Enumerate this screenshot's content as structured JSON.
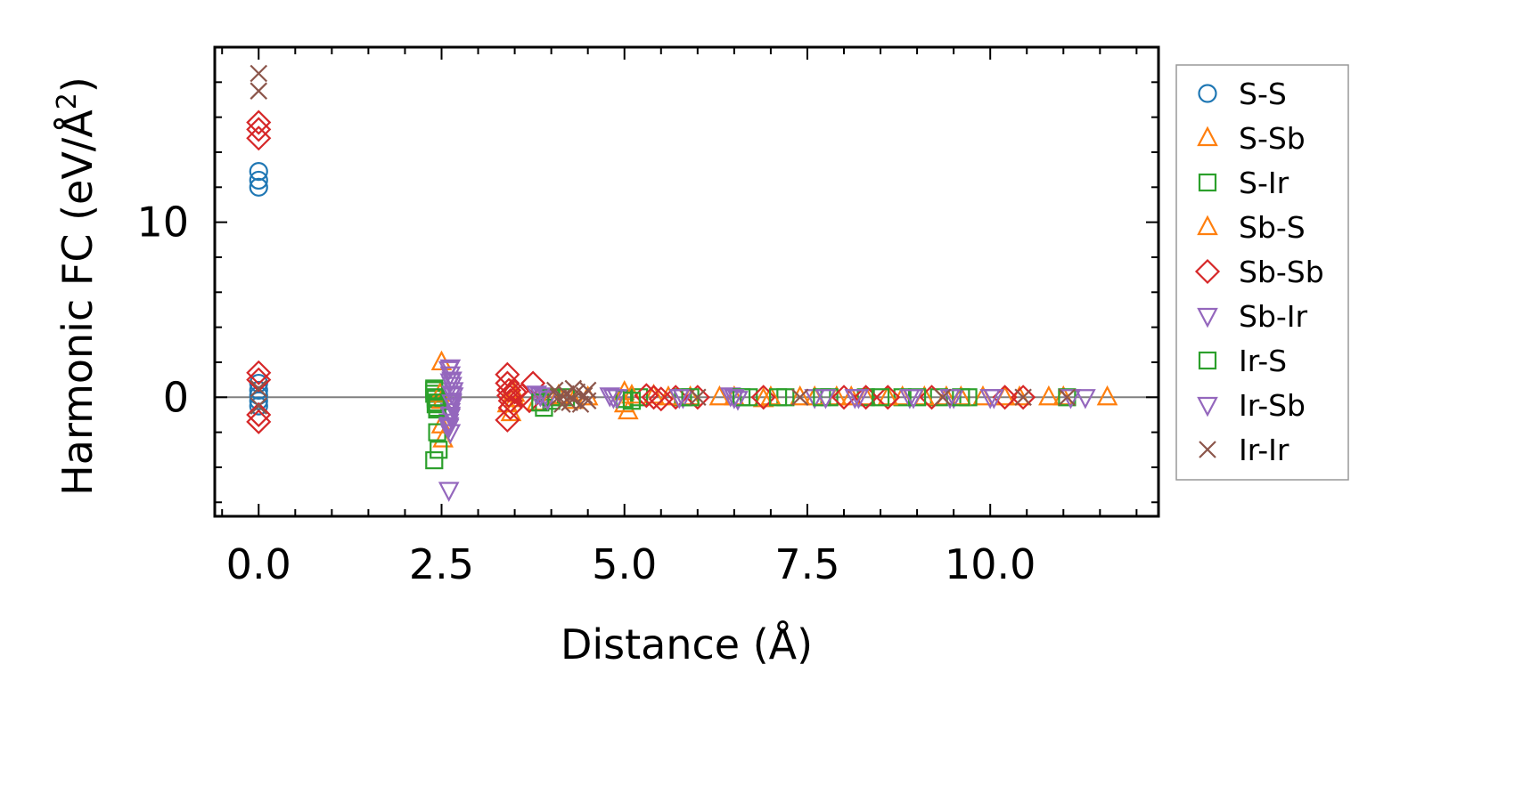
{
  "chart_data": {
    "type": "scatter",
    "title": "",
    "xlabel": "Distance (Å)",
    "ylabel_main": "Harmonic FC (eV/Å",
    "ylabel_sup": "2",
    "ylabel_close": ")",
    "xlim": [
      -0.6,
      12.3
    ],
    "ylim": [
      -6.8,
      20.0
    ],
    "xticks": [
      {
        "value": 0.0,
        "label": "0.0"
      },
      {
        "value": 2.5,
        "label": "2.5"
      },
      {
        "value": 5.0,
        "label": "5.0"
      },
      {
        "value": 7.5,
        "label": "7.5"
      },
      {
        "value": 10.0,
        "label": "10.0"
      }
    ],
    "yticks": [
      {
        "value": 0,
        "label": "0"
      },
      {
        "value": 10,
        "label": "10"
      }
    ],
    "x_minor_step": 0.5,
    "y_minor_step": 2,
    "zero_line": 0,
    "legend_position": "outside-right",
    "series": [
      {
        "name": "S-S",
        "marker": "circle",
        "color": "#1f77b4",
        "points": [
          [
            0,
            12.9
          ],
          [
            0,
            12.4
          ],
          [
            0,
            12.0
          ],
          [
            0,
            0.8
          ],
          [
            0,
            0.4
          ],
          [
            0,
            0.1
          ],
          [
            0,
            -0.2
          ],
          [
            0,
            -0.5
          ]
        ]
      },
      {
        "name": "S-Sb",
        "marker": "triangle-up",
        "color": "#ff7f0e",
        "points": [
          [
            2.5,
            2.0
          ],
          [
            2.5,
            -1.6
          ],
          [
            2.52,
            -2.4
          ],
          [
            3.4,
            -0.4
          ],
          [
            3.45,
            -0.9
          ],
          [
            3.5,
            0.2
          ],
          [
            3.8,
            -0.3
          ],
          [
            4.1,
            0.1
          ],
          [
            4.3,
            -0.2
          ],
          [
            5.0,
            0.3
          ],
          [
            5.0,
            -0.4
          ],
          [
            5.05,
            -0.8
          ],
          [
            5.4,
            0.1
          ],
          [
            5.9,
            0
          ],
          [
            6.5,
            0
          ],
          [
            6.9,
            -0.1
          ],
          [
            7.4,
            0
          ],
          [
            7.9,
            0
          ],
          [
            8.3,
            0
          ],
          [
            8.8,
            0
          ],
          [
            9.4,
            0
          ],
          [
            9.9,
            0
          ],
          [
            10.4,
            0
          ],
          [
            11.0,
            0
          ],
          [
            11.6,
            0
          ]
        ]
      },
      {
        "name": "S-Ir",
        "marker": "square",
        "color": "#2ca02c",
        "points": [
          [
            2.4,
            0.5
          ],
          [
            2.4,
            0.2
          ],
          [
            2.42,
            -0.1
          ],
          [
            2.42,
            -0.4
          ],
          [
            2.44,
            -0.7
          ],
          [
            2.44,
            -2.0
          ],
          [
            2.46,
            -3.0
          ],
          [
            2.4,
            -3.6
          ],
          [
            3.9,
            -0.6
          ],
          [
            4.0,
            -0.2
          ],
          [
            4.2,
            0
          ],
          [
            5.0,
            -0.1
          ],
          [
            5.2,
            0
          ],
          [
            5.8,
            0
          ],
          [
            6.7,
            0
          ],
          [
            7.2,
            0
          ],
          [
            7.8,
            0
          ],
          [
            8.3,
            0
          ],
          [
            8.8,
            0
          ],
          [
            9.3,
            0
          ],
          [
            9.7,
            0
          ]
        ]
      },
      {
        "name": "Sb-S",
        "marker": "triangle-up",
        "color": "#ff7f0e",
        "points": [
          [
            2.48,
            0.2
          ],
          [
            2.5,
            -0.2
          ],
          [
            3.45,
            0.4
          ],
          [
            3.5,
            -0.1
          ],
          [
            4.0,
            0
          ],
          [
            4.5,
            0
          ],
          [
            5.1,
            0.1
          ],
          [
            5.6,
            0
          ],
          [
            6.3,
            0
          ],
          [
            7.0,
            0
          ],
          [
            7.6,
            0
          ],
          [
            8.1,
            0
          ],
          [
            8.6,
            0
          ],
          [
            9.1,
            0
          ],
          [
            9.6,
            0
          ],
          [
            10.2,
            0
          ],
          [
            10.8,
            0
          ]
        ]
      },
      {
        "name": "Sb-Sb",
        "marker": "diamond",
        "color": "#d62728",
        "points": [
          [
            0,
            15.7
          ],
          [
            0,
            15.3
          ],
          [
            0,
            14.8
          ],
          [
            0,
            1.4
          ],
          [
            0,
            1.0
          ],
          [
            0,
            -1.0
          ],
          [
            0,
            -1.4
          ],
          [
            3.4,
            1.3
          ],
          [
            3.4,
            0.8
          ],
          [
            3.42,
            0.4
          ],
          [
            3.42,
            0.1
          ],
          [
            3.44,
            -0.2
          ],
          [
            3.44,
            -0.6
          ],
          [
            3.4,
            -1.3
          ],
          [
            3.5,
            0.3
          ],
          [
            3.6,
            0.1
          ],
          [
            3.7,
            -0.2
          ],
          [
            3.75,
            0.8
          ],
          [
            5.3,
            0.1
          ],
          [
            5.4,
            0
          ],
          [
            5.5,
            -0.1
          ],
          [
            5.7,
            0
          ],
          [
            6.0,
            0
          ],
          [
            6.9,
            0
          ],
          [
            8.0,
            0
          ],
          [
            8.3,
            0
          ],
          [
            8.6,
            0
          ],
          [
            9.2,
            0
          ],
          [
            10.2,
            0
          ],
          [
            10.45,
            0
          ]
        ]
      },
      {
        "name": "Sb-Ir",
        "marker": "triangle-down",
        "color": "#9467bd",
        "points": [
          [
            2.62,
            1.7
          ],
          [
            2.62,
            1.3
          ],
          [
            2.64,
            1.0
          ],
          [
            2.64,
            0.7
          ],
          [
            2.66,
            0.4
          ],
          [
            2.66,
            0.1
          ],
          [
            2.64,
            -0.2
          ],
          [
            2.64,
            -0.5
          ],
          [
            2.62,
            -0.8
          ],
          [
            2.62,
            -1.1
          ],
          [
            2.6,
            -1.4
          ],
          [
            2.6,
            -1.7
          ],
          [
            2.62,
            -2.0
          ],
          [
            2.6,
            -5.3
          ],
          [
            3.8,
            0.2
          ],
          [
            3.9,
            0
          ],
          [
            4.8,
            0.1
          ],
          [
            4.9,
            0
          ],
          [
            5.8,
            0
          ],
          [
            6.45,
            0.1
          ],
          [
            6.5,
            0
          ],
          [
            6.55,
            -0.1
          ],
          [
            7.6,
            0
          ],
          [
            8.2,
            0
          ],
          [
            8.9,
            0
          ],
          [
            9.5,
            0
          ],
          [
            10.0,
            0
          ],
          [
            11.3,
            0
          ]
        ]
      },
      {
        "name": "Ir-S",
        "marker": "square",
        "color": "#2ca02c",
        "points": [
          [
            2.4,
            0.4
          ],
          [
            2.42,
            0
          ],
          [
            2.44,
            -0.3
          ],
          [
            2.44,
            -0.6
          ],
          [
            3.85,
            -0.3
          ],
          [
            4.0,
            0
          ],
          [
            5.1,
            -0.2
          ],
          [
            5.9,
            0
          ],
          [
            6.6,
            0
          ],
          [
            7.1,
            0
          ],
          [
            7.7,
            0
          ],
          [
            8.5,
            0
          ],
          [
            9.0,
            0
          ],
          [
            9.6,
            0
          ],
          [
            11.05,
            0
          ]
        ]
      },
      {
        "name": "Ir-Sb",
        "marker": "triangle-down",
        "color": "#9467bd",
        "points": [
          [
            2.6,
            1.6
          ],
          [
            2.62,
            0.9
          ],
          [
            2.64,
            0.2
          ],
          [
            2.64,
            -0.3
          ],
          [
            2.62,
            -1.0
          ],
          [
            2.6,
            -1.6
          ],
          [
            3.85,
            0.1
          ],
          [
            3.95,
            -0.1
          ],
          [
            4.85,
            0
          ],
          [
            5.75,
            0
          ],
          [
            6.5,
            0
          ],
          [
            7.75,
            0
          ],
          [
            8.15,
            0
          ],
          [
            8.95,
            0
          ],
          [
            9.45,
            0
          ],
          [
            10.05,
            0
          ],
          [
            11.1,
            0
          ]
        ]
      },
      {
        "name": "Ir-Ir",
        "marker": "x",
        "color": "#8c564b",
        "points": [
          [
            0,
            18.5
          ],
          [
            0,
            17.5
          ],
          [
            0,
            0.5
          ],
          [
            0,
            -0.5
          ],
          [
            4.05,
            0.4
          ],
          [
            4.1,
            0
          ],
          [
            4.15,
            -0.4
          ],
          [
            4.2,
            0.2
          ],
          [
            4.25,
            -0.3
          ],
          [
            4.3,
            0.5
          ],
          [
            4.3,
            -0.1
          ],
          [
            4.35,
            0.3
          ],
          [
            4.4,
            -0.4
          ],
          [
            4.45,
            0.1
          ],
          [
            4.5,
            0.4
          ],
          [
            4.5,
            -0.2
          ],
          [
            6.0,
            0
          ],
          [
            7.4,
            0
          ],
          [
            9.35,
            0
          ],
          [
            10.45,
            0
          ],
          [
            11.05,
            0
          ]
        ]
      }
    ]
  }
}
